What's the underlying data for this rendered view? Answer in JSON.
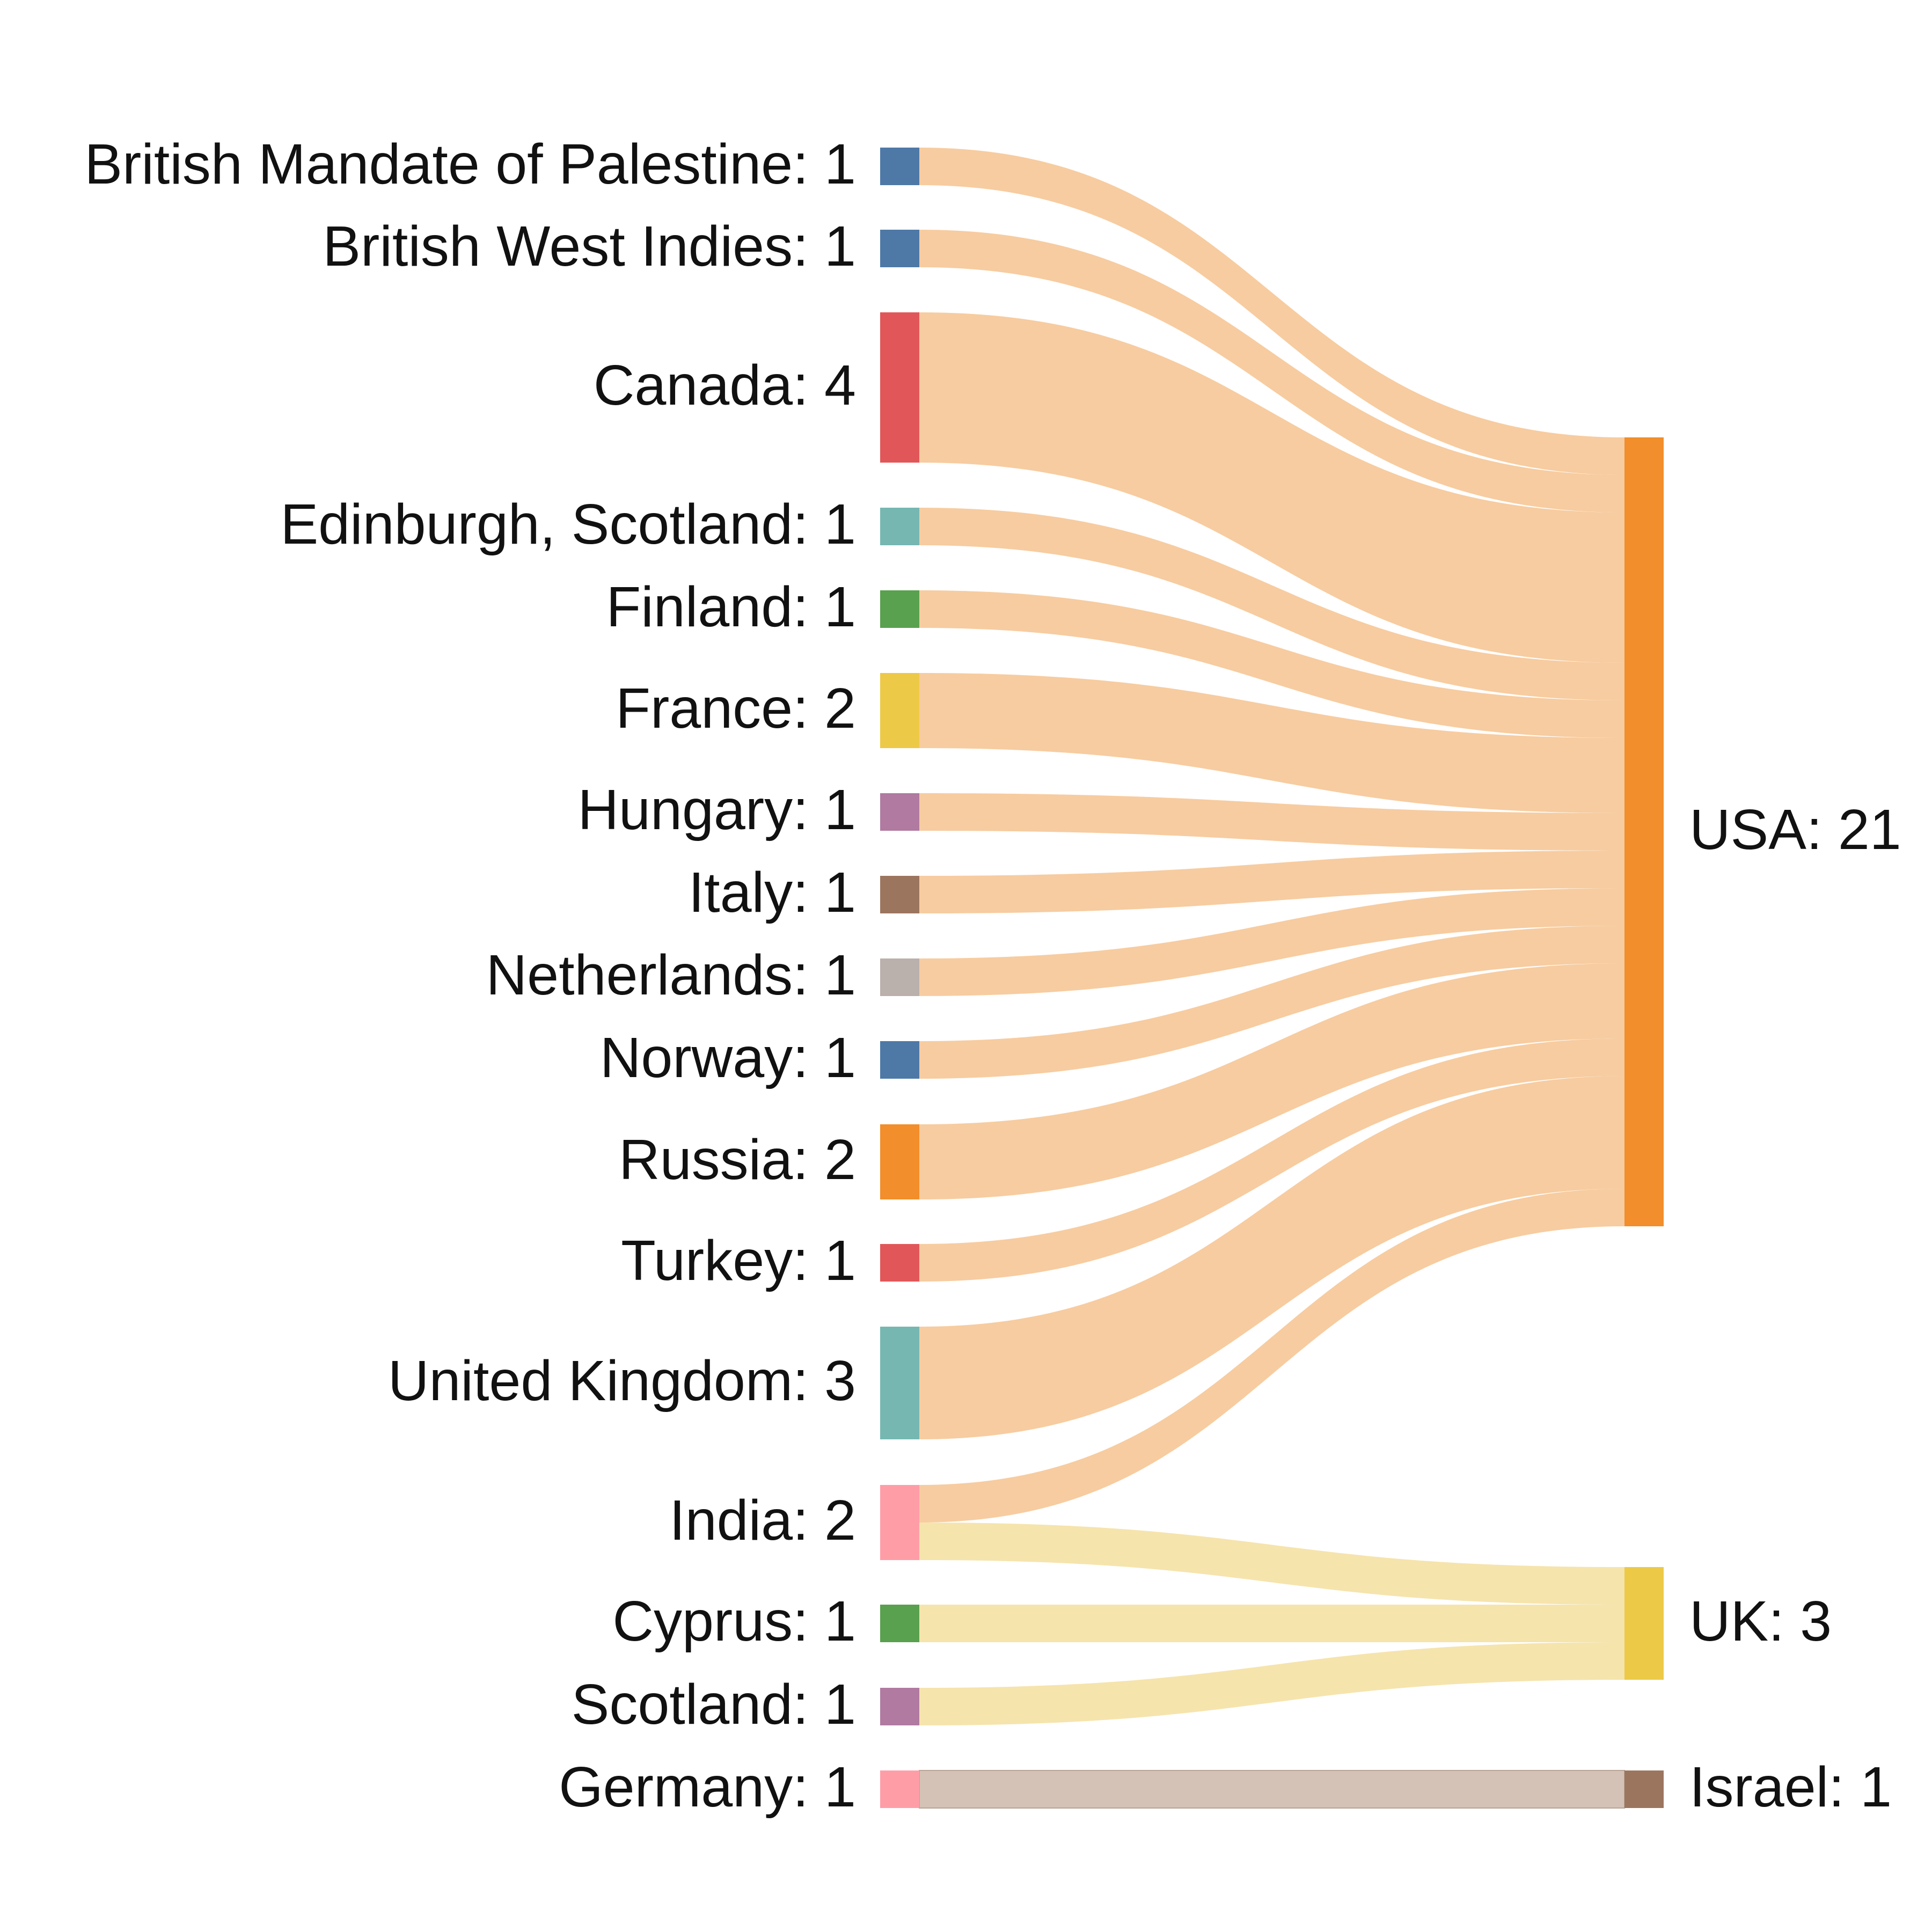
{
  "chart_data": {
    "type": "sankey",
    "sources": [
      {
        "id": "bmp",
        "name": "British Mandate of Palestine",
        "value": 1,
        "color": "#4e79a7"
      },
      {
        "id": "bwi",
        "name": "British West Indies",
        "value": 1,
        "color": "#4e79a7"
      },
      {
        "id": "canada",
        "name": "Canada",
        "value": 4,
        "color": "#e15759"
      },
      {
        "id": "edinburgh",
        "name": "Edinburgh, Scotland",
        "value": 1,
        "color": "#76b7b2"
      },
      {
        "id": "finland",
        "name": "Finland",
        "value": 1,
        "color": "#59a14f"
      },
      {
        "id": "france",
        "name": "France",
        "value": 2,
        "color": "#edc948"
      },
      {
        "id": "hungary",
        "name": "Hungary",
        "value": 1,
        "color": "#b07aa1"
      },
      {
        "id": "italy",
        "name": "Italy",
        "value": 1,
        "color": "#9c755f"
      },
      {
        "id": "netherlands",
        "name": "Netherlands",
        "value": 1,
        "color": "#bab0ac"
      },
      {
        "id": "norway",
        "name": "Norway",
        "value": 1,
        "color": "#4e79a7"
      },
      {
        "id": "russia",
        "name": "Russia",
        "value": 2,
        "color": "#f28e2b"
      },
      {
        "id": "turkey",
        "name": "Turkey",
        "value": 1,
        "color": "#e15759"
      },
      {
        "id": "uk_src",
        "name": "United Kingdom",
        "value": 3,
        "color": "#76b7b2"
      },
      {
        "id": "india",
        "name": "India",
        "value": 2,
        "color": "#ff9da7"
      },
      {
        "id": "cyprus",
        "name": "Cyprus",
        "value": 1,
        "color": "#59a14f"
      },
      {
        "id": "scotland",
        "name": "Scotland",
        "value": 1,
        "color": "#b07aa1"
      },
      {
        "id": "germany",
        "name": "Germany",
        "value": 1,
        "color": "#ff9da7"
      }
    ],
    "targets": [
      {
        "id": "usa",
        "name": "USA",
        "value": 21,
        "color": "#f28e2b",
        "link_color": "#f7cca0"
      },
      {
        "id": "uk_tgt",
        "name": "UK",
        "value": 3,
        "color": "#edc948",
        "link_color": "#f6e4ad"
      },
      {
        "id": "israel",
        "name": "Israel",
        "value": 1,
        "color": "#9c755f",
        "link_color": "#d4c2b6"
      }
    ],
    "links": [
      {
        "source": "bmp",
        "target": "usa",
        "value": 1
      },
      {
        "source": "bwi",
        "target": "usa",
        "value": 1
      },
      {
        "source": "canada",
        "target": "usa",
        "value": 4
      },
      {
        "source": "edinburgh",
        "target": "usa",
        "value": 1
      },
      {
        "source": "finland",
        "target": "usa",
        "value": 1
      },
      {
        "source": "france",
        "target": "usa",
        "value": 2
      },
      {
        "source": "hungary",
        "target": "usa",
        "value": 1
      },
      {
        "source": "italy",
        "target": "usa",
        "value": 1
      },
      {
        "source": "netherlands",
        "target": "usa",
        "value": 1
      },
      {
        "source": "norway",
        "target": "usa",
        "value": 1
      },
      {
        "source": "russia",
        "target": "usa",
        "value": 2
      },
      {
        "source": "turkey",
        "target": "usa",
        "value": 1
      },
      {
        "source": "uk_src",
        "target": "usa",
        "value": 3
      },
      {
        "source": "india",
        "target": "usa",
        "value": 1
      },
      {
        "source": "india",
        "target": "uk_tgt",
        "value": 1
      },
      {
        "source": "cyprus",
        "target": "uk_tgt",
        "value": 1
      },
      {
        "source": "scotland",
        "target": "uk_tgt",
        "value": 1
      },
      {
        "source": "germany",
        "target": "israel",
        "value": 1
      }
    ]
  }
}
